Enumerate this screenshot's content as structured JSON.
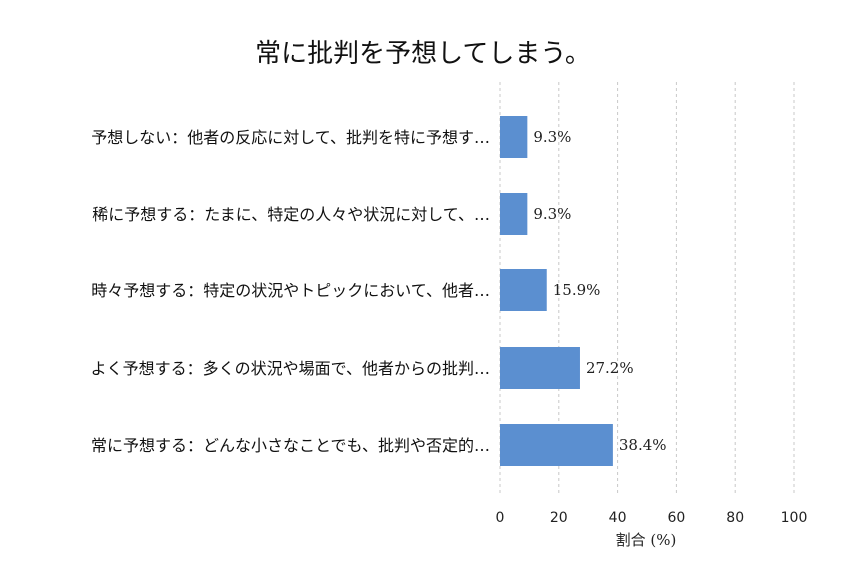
{
  "chart_data": {
    "type": "bar",
    "orientation": "horizontal",
    "title": "常に批判を予想してしまう。",
    "xlabel": "割合 (%)",
    "ylabel": "",
    "xlim": [
      0,
      100
    ],
    "xticks": [
      0,
      20,
      40,
      60,
      80,
      100
    ],
    "grid": true,
    "categories": [
      "予想しない：他者の反応に対して、批判を特に予想す…",
      "稀に予想する：たまに、特定の人々や状況に対して、…",
      "時々予想する：特定の状況やトピックにおいて、他者…",
      "よく予想する：多くの状況や場面で、他者からの批判…",
      "常に予想する：どんな小さなことでも、批判や否定的…"
    ],
    "values": [
      9.3,
      9.3,
      15.9,
      27.2,
      38.4
    ],
    "value_labels": [
      "9.3%",
      "9.3%",
      "15.9%",
      "27.2%",
      "38.4%"
    ],
    "bar_color": "#5b8fd0"
  }
}
